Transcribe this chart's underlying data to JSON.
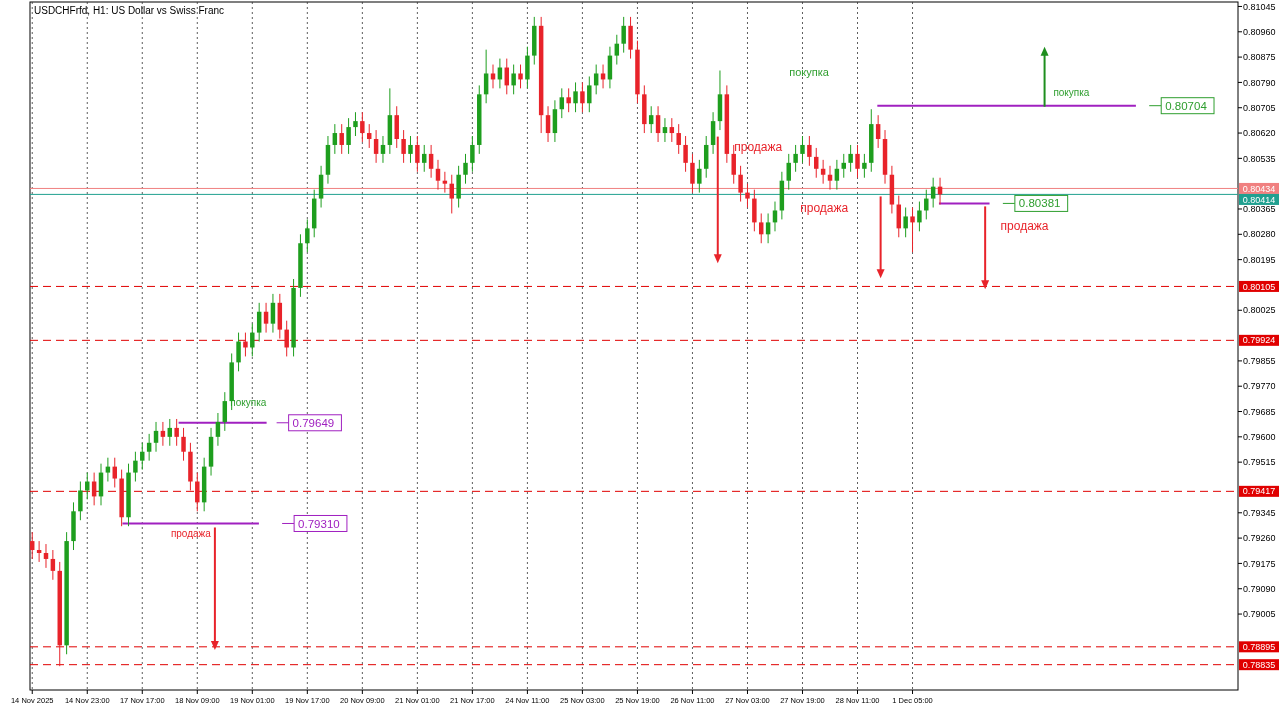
{
  "chart_data": {
    "type": "candlestick",
    "title": "USDCHFrfd, H1:  US Dollar vs Swiss Franc",
    "categories": [
      "14 Nov 2025",
      null,
      null,
      null,
      null,
      null,
      null,
      null,
      "14 Nov 23:00",
      null,
      null,
      null,
      null,
      null,
      null,
      null,
      "17 Nov 17:00",
      null,
      null,
      null,
      null,
      null,
      null,
      null,
      "18 Nov 09:00",
      null,
      null,
      null,
      null,
      null,
      null,
      null,
      "19 Nov 01:00",
      null,
      null,
      null,
      null,
      null,
      null,
      null,
      "19 Nov 17:00",
      null,
      null,
      null,
      null,
      null,
      null,
      null,
      "20 Nov 09:00",
      null,
      null,
      null,
      null,
      null,
      null,
      null,
      "21 Nov 01:00",
      null,
      null,
      null,
      null,
      null,
      null,
      null,
      "21 Nov 17:00",
      null,
      null,
      null,
      null,
      null,
      null,
      null,
      "24 Nov 11:00",
      null,
      null,
      null,
      null,
      null,
      null,
      null,
      "25 Nov 03:00",
      null,
      null,
      null,
      null,
      null,
      null,
      null,
      "25 Nov 19:00",
      null,
      null,
      null,
      null,
      null,
      null,
      null,
      "26 Nov 11:00",
      null,
      null,
      null,
      null,
      null,
      null,
      null,
      "27 Nov 03:00",
      null,
      null,
      null,
      null,
      null,
      null,
      null,
      "27 Nov 19:00",
      null,
      null,
      null,
      null,
      null,
      null,
      null,
      "28 Nov 11:00",
      null,
      null,
      null,
      null,
      null,
      null,
      null,
      "1 Dec 05:00",
      null,
      null,
      null,
      null,
      null,
      null,
      null,
      null,
      null,
      null,
      null,
      null,
      null,
      null,
      null,
      null,
      null,
      null,
      null,
      null,
      null,
      null,
      null,
      null,
      null,
      null,
      null,
      null,
      null,
      null,
      null,
      null,
      null,
      null,
      null,
      null,
      null,
      null,
      null,
      null,
      null,
      null,
      null,
      null,
      null,
      null,
      null
    ],
    "ohlc": [
      [
        0.7925,
        0.7928,
        0.7919,
        0.7922
      ],
      [
        0.7922,
        0.7925,
        0.7918,
        0.7921
      ],
      [
        0.7921,
        0.7924,
        0.7916,
        0.7919
      ],
      [
        0.7919,
        0.7922,
        0.7912,
        0.7915
      ],
      [
        0.7915,
        0.7918,
        0.7883,
        0.789
      ],
      [
        0.789,
        0.7928,
        0.7887,
        0.7925
      ],
      [
        0.7925,
        0.7938,
        0.7922,
        0.7935
      ],
      [
        0.7935,
        0.7945,
        0.7932,
        0.7942
      ],
      [
        0.7942,
        0.7948,
        0.7939,
        0.7945
      ],
      [
        0.7945,
        0.7948,
        0.7937,
        0.794
      ],
      [
        0.794,
        0.7951,
        0.7937,
        0.7948
      ],
      [
        0.7948,
        0.7953,
        0.7945,
        0.795
      ],
      [
        0.795,
        0.7953,
        0.7943,
        0.7946
      ],
      [
        0.7946,
        0.7949,
        0.793,
        0.7933
      ],
      [
        0.7933,
        0.7951,
        0.793,
        0.7948
      ],
      [
        0.7948,
        0.7955,
        0.7945,
        0.7952
      ],
      [
        0.7952,
        0.7958,
        0.7949,
        0.7955
      ],
      [
        0.7955,
        0.7961,
        0.7952,
        0.7958
      ],
      [
        0.7958,
        0.7965,
        0.7955,
        0.7962
      ],
      [
        0.7962,
        0.7965,
        0.7957,
        0.796
      ],
      [
        0.796,
        0.7966,
        0.7957,
        0.7963
      ],
      [
        0.7963,
        0.7966,
        0.7957,
        0.796
      ],
      [
        0.796,
        0.7963,
        0.7952,
        0.7955
      ],
      [
        0.7955,
        0.7958,
        0.7942,
        0.7945
      ],
      [
        0.7945,
        0.7948,
        0.7935,
        0.7938
      ],
      [
        0.7938,
        0.7953,
        0.7935,
        0.795
      ],
      [
        0.795,
        0.7963,
        0.7947,
        0.796
      ],
      [
        0.796,
        0.7968,
        0.7957,
        0.7965
      ],
      [
        0.7965,
        0.7975,
        0.7962,
        0.7972
      ],
      [
        0.7972,
        0.7988,
        0.7969,
        0.7985
      ],
      [
        0.7985,
        0.7995,
        0.7982,
        0.7992
      ],
      [
        0.7992,
        0.7995,
        0.7987,
        0.799
      ],
      [
        0.799,
        0.7998,
        0.7987,
        0.7995
      ],
      [
        0.7995,
        0.8005,
        0.7992,
        0.8002
      ],
      [
        0.8002,
        0.8005,
        0.7995,
        0.7998
      ],
      [
        0.7998,
        0.8008,
        0.7995,
        0.8005
      ],
      [
        0.8005,
        0.8008,
        0.7993,
        0.7996
      ],
      [
        0.7996,
        0.7999,
        0.7987,
        0.799
      ],
      [
        0.799,
        0.8013,
        0.7987,
        0.801
      ],
      [
        0.801,
        0.8028,
        0.8007,
        0.8025
      ],
      [
        0.8025,
        0.8033,
        0.8022,
        0.803
      ],
      [
        0.803,
        0.8043,
        0.8027,
        0.804
      ],
      [
        0.804,
        0.8051,
        0.8037,
        0.8048
      ],
      [
        0.8048,
        0.8061,
        0.8045,
        0.8058
      ],
      [
        0.8058,
        0.8065,
        0.8055,
        0.8062
      ],
      [
        0.8062,
        0.8065,
        0.8055,
        0.8058
      ],
      [
        0.8058,
        0.8067,
        0.8055,
        0.8064
      ],
      [
        0.8064,
        0.8069,
        0.8061,
        0.8066
      ],
      [
        0.8066,
        0.8069,
        0.8059,
        0.8062
      ],
      [
        0.8062,
        0.8065,
        0.8057,
        0.806
      ],
      [
        0.806,
        0.8063,
        0.8052,
        0.8055
      ],
      [
        0.8055,
        0.8061,
        0.8052,
        0.8058
      ],
      [
        0.8058,
        0.8077,
        0.8055,
        0.8068
      ],
      [
        0.8068,
        0.8071,
        0.8057,
        0.806
      ],
      [
        0.806,
        0.8063,
        0.8052,
        0.8055
      ],
      [
        0.8055,
        0.8061,
        0.8052,
        0.8058
      ],
      [
        0.8058,
        0.8061,
        0.8049,
        0.8052
      ],
      [
        0.8052,
        0.8058,
        0.8049,
        0.8055
      ],
      [
        0.8055,
        0.8058,
        0.8047,
        0.805
      ],
      [
        0.805,
        0.8053,
        0.8043,
        0.8046
      ],
      [
        0.8046,
        0.8049,
        0.8042,
        0.8045
      ],
      [
        0.8045,
        0.8048,
        0.8035,
        0.804
      ],
      [
        0.804,
        0.8051,
        0.8037,
        0.8048
      ],
      [
        0.8048,
        0.8055,
        0.8045,
        0.8052
      ],
      [
        0.8052,
        0.8061,
        0.8049,
        0.8058
      ],
      [
        0.8058,
        0.8078,
        0.8055,
        0.8075
      ],
      [
        0.8075,
        0.809,
        0.8072,
        0.8082
      ],
      [
        0.8082,
        0.8085,
        0.8077,
        0.808
      ],
      [
        0.808,
        0.8087,
        0.8077,
        0.8084
      ],
      [
        0.8084,
        0.8087,
        0.8075,
        0.8078
      ],
      [
        0.8078,
        0.8085,
        0.8075,
        0.8082
      ],
      [
        0.8082,
        0.8085,
        0.8077,
        0.808
      ],
      [
        0.808,
        0.8091,
        0.8077,
        0.8088
      ],
      [
        0.8088,
        0.8101,
        0.8085,
        0.8098
      ],
      [
        0.8098,
        0.8101,
        0.8062,
        0.8068
      ],
      [
        0.8068,
        0.8071,
        0.8059,
        0.8062
      ],
      [
        0.8062,
        0.8073,
        0.8059,
        0.807
      ],
      [
        0.807,
        0.8077,
        0.8067,
        0.8074
      ],
      [
        0.8074,
        0.8077,
        0.8069,
        0.8072
      ],
      [
        0.8072,
        0.8079,
        0.8069,
        0.8076
      ],
      [
        0.8076,
        0.8079,
        0.8069,
        0.8072
      ],
      [
        0.8072,
        0.8081,
        0.8069,
        0.8078
      ],
      [
        0.8078,
        0.8085,
        0.8075,
        0.8082
      ],
      [
        0.8082,
        0.8085,
        0.8077,
        0.808
      ],
      [
        0.808,
        0.8091,
        0.8077,
        0.8088
      ],
      [
        0.8088,
        0.8095,
        0.8085,
        0.8092
      ],
      [
        0.8092,
        0.8101,
        0.8089,
        0.8098
      ],
      [
        0.8098,
        0.8101,
        0.8087,
        0.809
      ],
      [
        0.809,
        0.8093,
        0.8072,
        0.8075
      ],
      [
        0.8075,
        0.8078,
        0.8062,
        0.8065
      ],
      [
        0.8065,
        0.8071,
        0.8062,
        0.8068
      ],
      [
        0.8068,
        0.8071,
        0.8059,
        0.8062
      ],
      [
        0.8062,
        0.8067,
        0.8059,
        0.8064
      ],
      [
        0.8064,
        0.8067,
        0.8059,
        0.8062
      ],
      [
        0.8062,
        0.8065,
        0.8055,
        0.8058
      ],
      [
        0.8058,
        0.8061,
        0.8049,
        0.8052
      ],
      [
        0.8052,
        0.8055,
        0.8042,
        0.8045
      ],
      [
        0.8045,
        0.8053,
        0.8042,
        0.805
      ],
      [
        0.805,
        0.8061,
        0.8047,
        0.8058
      ],
      [
        0.8058,
        0.8069,
        0.8055,
        0.8066
      ],
      [
        0.8066,
        0.8083,
        0.8063,
        0.8075
      ],
      [
        0.8075,
        0.8078,
        0.8052,
        0.8055
      ],
      [
        0.8055,
        0.8058,
        0.8045,
        0.8048
      ],
      [
        0.8048,
        0.8051,
        0.8039,
        0.8042
      ],
      [
        0.8042,
        0.8045,
        0.8037,
        0.804
      ],
      [
        0.804,
        0.8043,
        0.8029,
        0.8032
      ],
      [
        0.8032,
        0.8035,
        0.8025,
        0.8028
      ],
      [
        0.8028,
        0.8035,
        0.8025,
        0.8032
      ],
      [
        0.8032,
        0.8039,
        0.8029,
        0.8036
      ],
      [
        0.8036,
        0.8049,
        0.8033,
        0.8046
      ],
      [
        0.8046,
        0.8055,
        0.8043,
        0.8052
      ],
      [
        0.8052,
        0.8058,
        0.8049,
        0.8055
      ],
      [
        0.8055,
        0.8061,
        0.8052,
        0.8058
      ],
      [
        0.8058,
        0.8061,
        0.8051,
        0.8054
      ],
      [
        0.8054,
        0.8057,
        0.8047,
        0.805
      ],
      [
        0.805,
        0.8053,
        0.8045,
        0.8048
      ],
      [
        0.8048,
        0.8051,
        0.8043,
        0.8046
      ],
      [
        0.8046,
        0.8053,
        0.8043,
        0.805
      ],
      [
        0.805,
        0.8055,
        0.8047,
        0.8052
      ],
      [
        0.8052,
        0.8058,
        0.8049,
        0.8055
      ],
      [
        0.8055,
        0.8058,
        0.8047,
        0.805
      ],
      [
        0.805,
        0.8055,
        0.8047,
        0.8052
      ],
      [
        0.8052,
        0.807,
        0.8049,
        0.8065
      ],
      [
        0.8065,
        0.8068,
        0.8057,
        0.806
      ],
      [
        0.806,
        0.8063,
        0.8045,
        0.8048
      ],
      [
        0.8048,
        0.8051,
        0.8035,
        0.8038
      ],
      [
        0.8038,
        0.8041,
        0.8027,
        0.803
      ],
      [
        0.803,
        0.8037,
        0.8027,
        0.8034
      ],
      [
        0.8034,
        0.8037,
        0.8022,
        0.8032
      ],
      [
        0.8032,
        0.8039,
        0.8029,
        0.8036
      ],
      [
        0.8036,
        0.8043,
        0.8033,
        0.804
      ],
      [
        0.804,
        0.8047,
        0.8037,
        0.8044
      ],
      [
        0.8044,
        0.8047,
        0.8038,
        0.80414
      ],
      null,
      null,
      null,
      null,
      null,
      null,
      null,
      null,
      null,
      null,
      null,
      null,
      null,
      null,
      null,
      null,
      null,
      null,
      null,
      null,
      null,
      null,
      null,
      null,
      null,
      null,
      null,
      null,
      null,
      null,
      null,
      null,
      null,
      null,
      null,
      null,
      null,
      null,
      null,
      null,
      null,
      null,
      null
    ],
    "ylim": [
      0.7875,
      0.8106
    ],
    "yticks": [
      0.81045,
      {
        "value": 0.8096,
        "label": "0.80960"
      },
      0.80875,
      {
        "value": 0.8079,
        "label": "0.80790"
      },
      0.80705,
      {
        "value": 0.8062,
        "label": "0.80620"
      },
      0.80535,
      0.80365,
      {
        "value": 0.8028,
        "label": "0.80280"
      },
      0.80195,
      0.80025,
      0.79855,
      {
        "value": 0.7977,
        "label": "0.79770"
      },
      0.79685,
      {
        "value": 0.796,
        "label": "0.79600"
      },
      0.79515,
      0.79345,
      {
        "value": 0.7926,
        "label": "0.79260"
      },
      0.79175,
      {
        "value": 0.7909,
        "label": "0.79090"
      },
      0.79005
    ],
    "grid": "x",
    "ref_lines": [
      {
        "axis": "y",
        "value": 0.80434,
        "label": "0.80434",
        "color": "#f08080",
        "line_style": "solid"
      },
      {
        "axis": "y",
        "value": 0.80414,
        "label": "0.80414",
        "color": "#20a090",
        "line_style": "solid"
      },
      {
        "axis": "y",
        "value": 0.80105,
        "label": "0.80105",
        "color": "#e00000",
        "line_style": "dashed"
      },
      {
        "axis": "y",
        "value": 0.79924,
        "label": "0.79924",
        "color": "#e00000",
        "line_style": "dashed"
      },
      {
        "axis": "y",
        "value": 0.79417,
        "label": "0.79417",
        "color": "#e00000",
        "line_style": "dashed"
      },
      {
        "axis": "y",
        "value": 0.78895,
        "label": "0.78895",
        "color": "#e00000",
        "line_style": "dashed"
      },
      {
        "axis": "y",
        "value": 0.78835,
        "label": "0.78835",
        "color": "#e00000",
        "line_style": "dashed"
      }
    ],
    "annotations": [
      "покупка",
      "продажа",
      "продажа",
      "продажа",
      "покупка",
      "покупка",
      "продажа",
      "0.80704",
      "0.80381",
      "0.79649",
      "0.79310"
    ]
  }
}
